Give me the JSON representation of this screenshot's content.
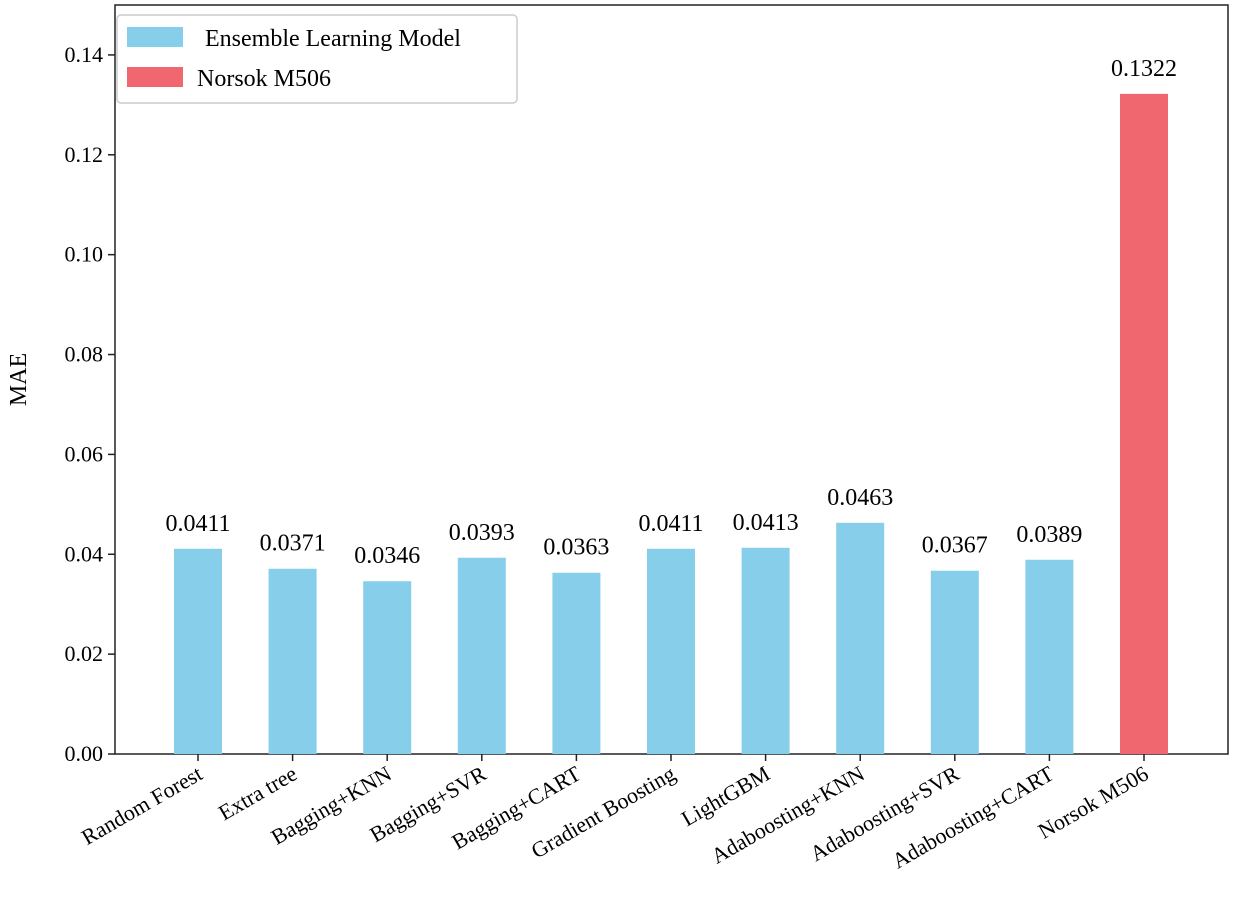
{
  "chart_data": {
    "type": "bar",
    "title": "",
    "xlabel": "",
    "ylabel": "MAE",
    "ylim": [
      0,
      0.15
    ],
    "yticks": [
      "0.00",
      "0.02",
      "0.04",
      "0.06",
      "0.08",
      "0.10",
      "0.12",
      "0.14"
    ],
    "grid": false,
    "legend_position": "top-left",
    "categories": [
      "Random Forest",
      "Extra tree",
      "Bagging+KNN",
      "Bagging+SVR",
      "Bagging+CART",
      "Gradient Boosting",
      "LightGBM",
      "Adaboosting+KNN",
      "Adaboosting+SVR",
      "Adaboosting+CART",
      "Norsok M506"
    ],
    "values": [
      0.0411,
      0.0371,
      0.0346,
      0.0393,
      0.0363,
      0.0411,
      0.0413,
      0.0463,
      0.0367,
      0.0389,
      0.1322
    ],
    "value_labels": [
      "0.0411",
      "0.0371",
      "0.0346",
      "0.0393",
      "0.0363",
      "0.0411",
      "0.0413",
      "0.0463",
      "0.0367",
      "0.0389",
      "0.1322"
    ],
    "groups": [
      0,
      0,
      0,
      0,
      0,
      0,
      0,
      0,
      0,
      0,
      1
    ],
    "series": [
      {
        "name": "Ensemble Learning Model",
        "color": "#87ceeb"
      },
      {
        "name": "Norsok M506",
        "color": "#f0676f"
      }
    ]
  }
}
